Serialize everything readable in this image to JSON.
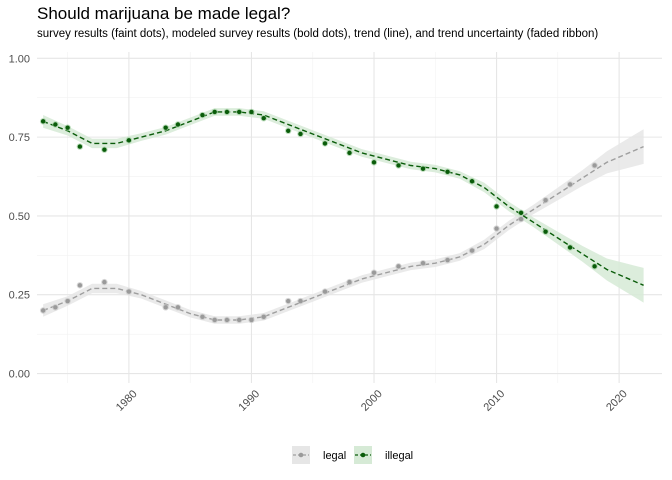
{
  "chart_data": {
    "type": "line",
    "title": "Should marijuana be made legal?",
    "subtitle": "survey results (faint dots), modeled survey results (bold dots), trend (line), and trend uncertainty (faded ribbon)",
    "xlabel": "",
    "ylabel": "",
    "xlim": [
      1972.5,
      2023.5
    ],
    "ylim": [
      -0.03,
      1.02
    ],
    "x_ticks": [
      1980,
      1990,
      2000,
      2010,
      2020
    ],
    "y_ticks": [
      0.0,
      0.25,
      0.5,
      0.75,
      1.0
    ],
    "y_tick_labels": [
      "0.00",
      "0.25",
      "0.50",
      "0.75",
      "1.00"
    ],
    "grid": true,
    "legend_position": "bottom",
    "colors": {
      "legal": "#9e9e9e",
      "illegal": "#0a5c0a",
      "legal_ribbon": "#e6e6e6",
      "illegal_ribbon": "#d6ead6"
    },
    "series": [
      {
        "name": "legal",
        "x": [
          1973,
          1974,
          1975,
          1976,
          1978,
          1980,
          1983,
          1984,
          1986,
          1987,
          1988,
          1989,
          1990,
          1991,
          1993,
          1994,
          1996,
          1998,
          2000,
          2002,
          2004,
          2006,
          2008,
          2010,
          2012,
          2014,
          2016,
          2018
        ],
        "values": [
          0.2,
          0.21,
          0.23,
          0.28,
          0.29,
          0.26,
          0.21,
          0.21,
          0.18,
          0.17,
          0.17,
          0.17,
          0.17,
          0.18,
          0.23,
          0.23,
          0.26,
          0.29,
          0.32,
          0.34,
          0.35,
          0.36,
          0.39,
          0.46,
          0.49,
          0.55,
          0.6,
          0.66
        ],
        "trend_x": [
          1973,
          1975,
          1977,
          1979,
          1981,
          1983,
          1985,
          1987,
          1989,
          1991,
          1993,
          1995,
          1997,
          1999,
          2001,
          2003,
          2005,
          2007,
          2009,
          2011,
          2013,
          2015,
          2017,
          2019,
          2022
        ],
        "trend": [
          0.2,
          0.23,
          0.27,
          0.27,
          0.25,
          0.22,
          0.19,
          0.17,
          0.17,
          0.18,
          0.21,
          0.24,
          0.27,
          0.3,
          0.32,
          0.34,
          0.35,
          0.37,
          0.41,
          0.47,
          0.52,
          0.57,
          0.62,
          0.67,
          0.72
        ],
        "ribbon_halfwidth": [
          0.02,
          0.015,
          0.015,
          0.015,
          0.012,
          0.012,
          0.012,
          0.012,
          0.012,
          0.012,
          0.012,
          0.012,
          0.012,
          0.012,
          0.012,
          0.012,
          0.012,
          0.012,
          0.015,
          0.015,
          0.015,
          0.02,
          0.025,
          0.035,
          0.055
        ]
      },
      {
        "name": "illegal",
        "x": [
          1973,
          1974,
          1975,
          1976,
          1978,
          1980,
          1983,
          1984,
          1986,
          1987,
          1988,
          1989,
          1990,
          1991,
          1993,
          1994,
          1996,
          1998,
          2000,
          2002,
          2004,
          2006,
          2008,
          2010,
          2012,
          2014,
          2016,
          2018
        ],
        "values": [
          0.8,
          0.79,
          0.78,
          0.72,
          0.71,
          0.74,
          0.78,
          0.79,
          0.82,
          0.83,
          0.83,
          0.83,
          0.83,
          0.81,
          0.77,
          0.76,
          0.73,
          0.7,
          0.67,
          0.66,
          0.65,
          0.64,
          0.61,
          0.53,
          0.51,
          0.45,
          0.4,
          0.34
        ],
        "trend_x": [
          1973,
          1975,
          1977,
          1979,
          1981,
          1983,
          1985,
          1987,
          1989,
          1991,
          1993,
          1995,
          1997,
          1999,
          2001,
          2003,
          2005,
          2007,
          2009,
          2011,
          2013,
          2015,
          2017,
          2019,
          2022
        ],
        "trend": [
          0.8,
          0.77,
          0.73,
          0.73,
          0.75,
          0.77,
          0.8,
          0.83,
          0.83,
          0.82,
          0.79,
          0.76,
          0.73,
          0.7,
          0.68,
          0.66,
          0.65,
          0.63,
          0.59,
          0.53,
          0.48,
          0.43,
          0.38,
          0.33,
          0.28
        ],
        "ribbon_halfwidth": [
          0.02,
          0.015,
          0.015,
          0.015,
          0.012,
          0.012,
          0.012,
          0.012,
          0.012,
          0.012,
          0.012,
          0.012,
          0.012,
          0.012,
          0.012,
          0.012,
          0.012,
          0.012,
          0.015,
          0.015,
          0.015,
          0.02,
          0.025,
          0.035,
          0.055
        ]
      }
    ]
  }
}
